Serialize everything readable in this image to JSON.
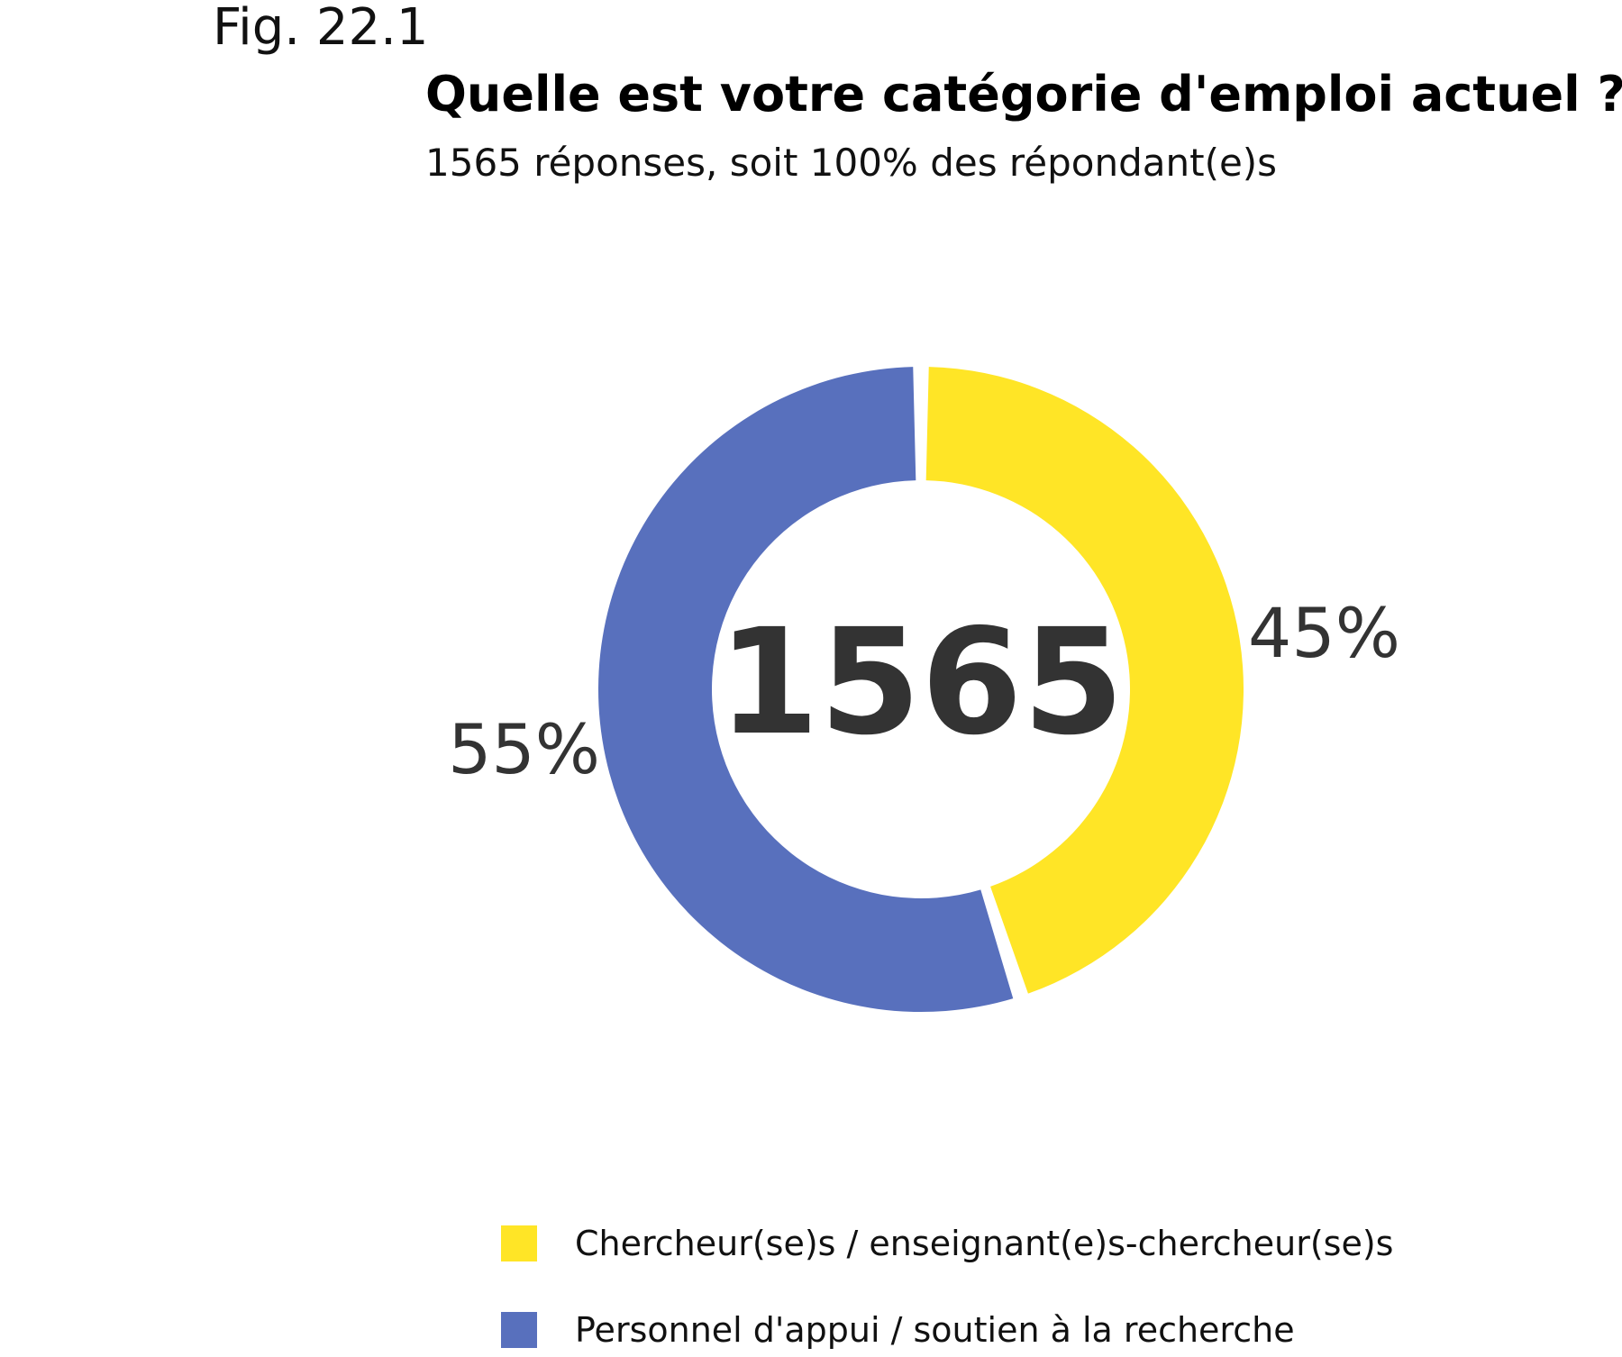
{
  "figure_label": "Fig. 22.1",
  "chart_data": {
    "type": "pie",
    "title": "Quelle est votre catégorie d'emploi actuel ?",
    "subtitle": "1565 réponses, soit 100% des répondant(e)s",
    "center_label": "1565",
    "legend_position": "bottom",
    "slices": [
      {
        "label": "Chercheur(se)s / enseignant(e)s-chercheur(se)s",
        "value": 45,
        "display": "45%",
        "color": "#FFE526"
      },
      {
        "label": "Personnel d'appui / soutien à la recherche",
        "value": 55,
        "display": "55%",
        "color": "#5870BD"
      }
    ]
  }
}
